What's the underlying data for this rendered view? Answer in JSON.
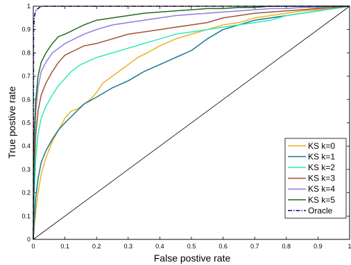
{
  "chart_data": {
    "type": "line",
    "title": "",
    "xlabel": "False postive rate",
    "ylabel": "True postive rate",
    "xlim": [
      0,
      1
    ],
    "ylim": [
      0,
      1
    ],
    "xticks": [
      "0",
      "0.1",
      "0.2",
      "0.3",
      "0.4",
      "0.5",
      "0.6",
      "0.7",
      "0.8",
      "0.9",
      "1"
    ],
    "yticks": [
      "0",
      "0.1",
      "0.2",
      "0.3",
      "0.4",
      "0.5",
      "0.6",
      "0.7",
      "0.8",
      "0.9",
      "1"
    ],
    "grid": false,
    "legend_position": "lower-right",
    "reference_line": {
      "x": [
        0,
        1
      ],
      "y": [
        0,
        1
      ],
      "color": "#000000"
    },
    "series": [
      {
        "name": "KS k=0",
        "color": "#EDB120",
        "dash": "solid",
        "x": [
          0,
          0.003,
          0.008,
          0.015,
          0.025,
          0.04,
          0.06,
          0.08,
          0.1,
          0.12,
          0.14,
          0.16,
          0.18,
          0.2,
          0.22,
          0.25,
          0.28,
          0.3,
          0.33,
          0.36,
          0.4,
          0.45,
          0.5,
          0.55,
          0.6,
          0.65,
          0.7,
          0.75,
          0.8,
          0.85,
          0.9,
          0.95,
          1
        ],
        "y": [
          0,
          0.05,
          0.12,
          0.2,
          0.28,
          0.35,
          0.42,
          0.47,
          0.52,
          0.55,
          0.56,
          0.58,
          0.6,
          0.63,
          0.67,
          0.7,
          0.73,
          0.75,
          0.78,
          0.8,
          0.83,
          0.86,
          0.88,
          0.9,
          0.92,
          0.93,
          0.95,
          0.96,
          0.97,
          0.98,
          0.985,
          0.99,
          1
        ]
      },
      {
        "name": "KS k=1",
        "color": "#137A8F",
        "dash": "solid",
        "x": [
          0,
          0.003,
          0.008,
          0.015,
          0.025,
          0.04,
          0.06,
          0.08,
          0.1,
          0.13,
          0.16,
          0.2,
          0.25,
          0.3,
          0.35,
          0.4,
          0.45,
          0.5,
          0.55,
          0.6,
          0.65,
          0.7,
          0.75,
          0.8,
          0.85,
          0.9,
          0.95,
          1
        ],
        "y": [
          0,
          0.08,
          0.18,
          0.26,
          0.33,
          0.38,
          0.43,
          0.47,
          0.5,
          0.54,
          0.58,
          0.61,
          0.65,
          0.68,
          0.72,
          0.75,
          0.78,
          0.81,
          0.86,
          0.9,
          0.92,
          0.94,
          0.95,
          0.96,
          0.97,
          0.98,
          0.99,
          1
        ]
      },
      {
        "name": "KS k=2",
        "color": "#2DEAB8",
        "dash": "solid",
        "x": [
          0,
          0.003,
          0.008,
          0.015,
          0.025,
          0.04,
          0.06,
          0.08,
          0.1,
          0.12,
          0.15,
          0.2,
          0.25,
          0.3,
          0.35,
          0.4,
          0.45,
          0.5,
          0.55,
          0.6,
          0.65,
          0.7,
          0.75,
          0.8,
          0.85,
          0.9,
          0.95,
          1
        ],
        "y": [
          0,
          0.2,
          0.35,
          0.45,
          0.52,
          0.57,
          0.62,
          0.66,
          0.69,
          0.72,
          0.75,
          0.78,
          0.8,
          0.82,
          0.84,
          0.86,
          0.88,
          0.89,
          0.9,
          0.91,
          0.92,
          0.93,
          0.94,
          0.96,
          0.97,
          0.98,
          0.99,
          1
        ]
      },
      {
        "name": "KS k=3",
        "color": "#A0522D",
        "dash": "solid",
        "x": [
          0,
          0.003,
          0.008,
          0.015,
          0.025,
          0.04,
          0.06,
          0.08,
          0.1,
          0.13,
          0.16,
          0.2,
          0.25,
          0.3,
          0.35,
          0.4,
          0.45,
          0.5,
          0.55,
          0.6,
          0.65,
          0.7,
          0.75,
          0.8,
          0.85,
          0.9,
          0.95,
          1
        ],
        "y": [
          0,
          0.3,
          0.45,
          0.55,
          0.62,
          0.67,
          0.72,
          0.76,
          0.79,
          0.81,
          0.83,
          0.84,
          0.86,
          0.88,
          0.89,
          0.9,
          0.91,
          0.92,
          0.93,
          0.95,
          0.96,
          0.97,
          0.975,
          0.98,
          0.985,
          0.99,
          0.995,
          1
        ]
      },
      {
        "name": "KS k=4",
        "color": "#8E7CE0",
        "dash": "solid",
        "x": [
          0,
          0.003,
          0.008,
          0.015,
          0.025,
          0.04,
          0.06,
          0.08,
          0.1,
          0.13,
          0.16,
          0.2,
          0.25,
          0.3,
          0.35,
          0.4,
          0.45,
          0.5,
          0.55,
          0.6,
          0.65,
          0.7,
          0.75,
          0.8,
          0.85,
          0.9,
          0.95,
          1
        ],
        "y": [
          0,
          0.4,
          0.55,
          0.65,
          0.72,
          0.76,
          0.8,
          0.82,
          0.84,
          0.86,
          0.88,
          0.9,
          0.92,
          0.93,
          0.94,
          0.95,
          0.96,
          0.965,
          0.97,
          0.975,
          0.98,
          0.985,
          0.99,
          0.99,
          0.995,
          0.995,
          1,
          1
        ]
      },
      {
        "name": "KS k=5",
        "color": "#1E6B1E",
        "dash": "solid",
        "x": [
          0,
          0.003,
          0.008,
          0.015,
          0.025,
          0.04,
          0.06,
          0.08,
          0.1,
          0.13,
          0.16,
          0.2,
          0.25,
          0.3,
          0.35,
          0.4,
          0.45,
          0.5,
          0.55,
          0.6,
          0.65,
          0.7,
          0.75,
          0.8,
          0.85,
          0.9,
          0.95,
          1
        ],
        "y": [
          0,
          0.45,
          0.6,
          0.7,
          0.76,
          0.8,
          0.84,
          0.87,
          0.88,
          0.9,
          0.92,
          0.94,
          0.95,
          0.96,
          0.97,
          0.975,
          0.98,
          0.985,
          0.99,
          0.99,
          0.995,
          0.995,
          1,
          1,
          1,
          1,
          1,
          1
        ]
      },
      {
        "name": "Oracle",
        "color": "#000080",
        "dash": "dashdot",
        "x": [
          0,
          0.001,
          0.003,
          0.006,
          0.01,
          0.015,
          0.02,
          0.03,
          0.05,
          1
        ],
        "y": [
          0,
          0.9,
          0.95,
          0.975,
          0.985,
          0.99,
          0.995,
          1,
          1,
          1
        ]
      }
    ]
  }
}
